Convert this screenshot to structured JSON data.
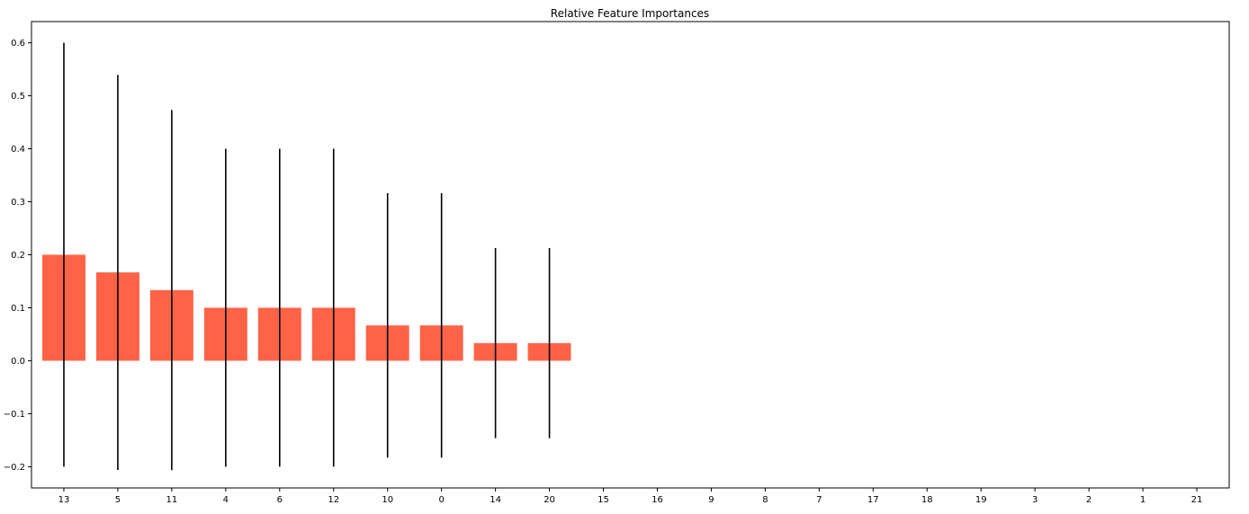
{
  "chart_data": {
    "type": "bar",
    "title": "Relative Feature Importances",
    "xlabel": "",
    "ylabel": "",
    "categories": [
      "13",
      "5",
      "11",
      "4",
      "6",
      "12",
      "10",
      "0",
      "14",
      "20",
      "15",
      "16",
      "9",
      "8",
      "7",
      "17",
      "18",
      "19",
      "3",
      "2",
      "1",
      "21"
    ],
    "values": [
      0.2,
      0.1667,
      0.1333,
      0.1,
      0.1,
      0.1,
      0.0667,
      0.0667,
      0.0333,
      0.0333,
      0,
      0,
      0,
      0,
      0,
      0,
      0,
      0,
      0,
      0,
      0,
      0
    ],
    "error": [
      0.4,
      0.3727,
      0.3399,
      0.3,
      0.3,
      0.3,
      0.2494,
      0.2494,
      0.1795,
      0.1795,
      0,
      0,
      0,
      0,
      0,
      0,
      0,
      0,
      0,
      0,
      0,
      0
    ],
    "ylim": [
      -0.24,
      0.64
    ],
    "yticks": [
      -0.2,
      -0.1,
      0.0,
      0.1,
      0.2,
      0.3,
      0.4,
      0.5,
      0.6
    ],
    "ytick_labels": [
      "−0.2",
      "−0.1",
      "0.0",
      "0.1",
      "0.2",
      "0.3",
      "0.4",
      "0.5",
      "0.6"
    ],
    "xlim": [
      -0.6,
      21.6
    ],
    "grid": false,
    "colors": {
      "bar": "#ff6347",
      "errorbar": "#000000",
      "axis": "#000000"
    }
  }
}
